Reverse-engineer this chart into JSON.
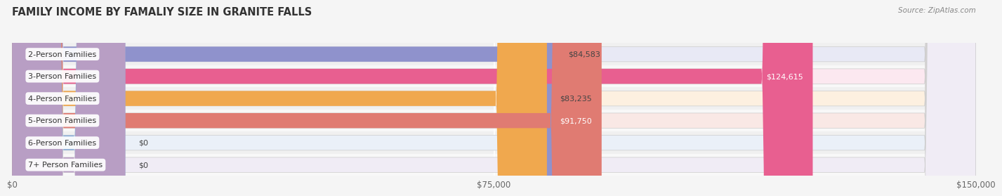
{
  "title": "FAMILY INCOME BY FAMALIY SIZE IN GRANITE FALLS",
  "source": "Source: ZipAtlas.com",
  "categories": [
    "2-Person Families",
    "3-Person Families",
    "4-Person Families",
    "5-Person Families",
    "6-Person Families",
    "7+ Person Families"
  ],
  "values": [
    84583,
    124615,
    83235,
    91750,
    0,
    0
  ],
  "bar_colors": [
    "#8f92cc",
    "#e85f90",
    "#f0a84e",
    "#e07b72",
    "#8fb0d8",
    "#b89ec4"
  ],
  "bar_bg_colors": [
    "#e8e9f5",
    "#fce8f0",
    "#fdf0e0",
    "#f9e8e5",
    "#eaf0f8",
    "#f0ecf5"
  ],
  "row_bg_colors": [
    "#f0f0f0",
    "#f8f8f8",
    "#f0f0f0",
    "#f8f8f8",
    "#f0f0f0",
    "#f8f8f8"
  ],
  "label_colors": [
    "#444444",
    "#ffffff",
    "#444444",
    "#ffffff",
    "#444444",
    "#444444"
  ],
  "value_in_bar": [
    false,
    true,
    false,
    true,
    false,
    false
  ],
  "value_labels": [
    "$84,583",
    "$124,615",
    "$83,235",
    "$91,750",
    "$0",
    "$0"
  ],
  "xlim": [
    0,
    150000
  ],
  "xtick_values": [
    0,
    75000,
    150000
  ],
  "xtick_labels": [
    "$0",
    "$75,000",
    "$150,000"
  ],
  "background_color": "#f5f5f5",
  "bar_height": 0.68,
  "title_fontsize": 10.5,
  "source_fontsize": 7.5,
  "label_fontsize": 8,
  "value_fontsize": 8
}
